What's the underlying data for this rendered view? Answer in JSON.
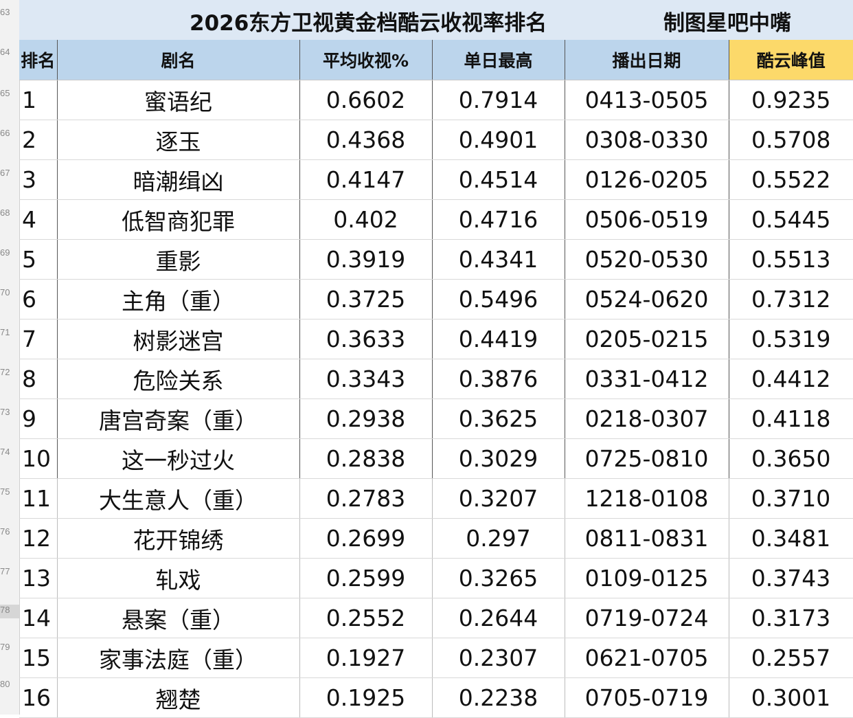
{
  "title": "2026东方卫视黄金档酷云收视率排名",
  "author": "制图星吧中嘴",
  "row_numbers": [
    "63",
    "64",
    "65",
    "66",
    "67",
    "68",
    "69",
    "70",
    "71",
    "72",
    "73",
    "74",
    "75",
    "76",
    "77",
    "78",
    "79",
    "80"
  ],
  "headers": [
    "排名",
    "剧名",
    "平均收视%",
    "单日最高",
    "播出日期",
    "酷云峰值"
  ],
  "rows": [
    {
      "rank": "1",
      "name": "蜜语纪",
      "avg": "0.6602",
      "max": "0.7914",
      "date": "0413-0505",
      "peak": "0.9235"
    },
    {
      "rank": "2",
      "name": "逐玉",
      "avg": "0.4368",
      "max": "0.4901",
      "date": "0308-0330",
      "peak": "0.5708"
    },
    {
      "rank": "3",
      "name": "暗潮缉凶",
      "avg": "0.4147",
      "max": "0.4514",
      "date": "0126-0205",
      "peak": "0.5522"
    },
    {
      "rank": "4",
      "name": "低智商犯罪",
      "avg": "0.402",
      "max": "0.4716",
      "date": "0506-0519",
      "peak": "0.5445"
    },
    {
      "rank": "5",
      "name": "重影",
      "avg": "0.3919",
      "max": "0.4341",
      "date": "0520-0530",
      "peak": "0.5513"
    },
    {
      "rank": "6",
      "name": "主角（重）",
      "avg": "0.3725",
      "max": "0.5496",
      "date": "0524-0620",
      "peak": "0.7312"
    },
    {
      "rank": "7",
      "name": "树影迷宫",
      "avg": "0.3633",
      "max": "0.4419",
      "date": "0205-0215",
      "peak": "0.5319"
    },
    {
      "rank": "8",
      "name": "危险关系",
      "avg": "0.3343",
      "max": "0.3876",
      "date": "0331-0412",
      "peak": "0.4412"
    },
    {
      "rank": "9",
      "name": "唐宫奇案（重）",
      "avg": "0.2938",
      "max": "0.3625",
      "date": "0218-0307",
      "peak": "0.4118"
    },
    {
      "rank": "10",
      "name": "这一秒过火",
      "avg": "0.2838",
      "max": "0.3029",
      "date": "0725-0810",
      "peak": "0.3650"
    },
    {
      "rank": "11",
      "name": "大生意人（重）",
      "avg": "0.2783",
      "max": "0.3207",
      "date": "1218-0108",
      "peak": "0.3710"
    },
    {
      "rank": "12",
      "name": "花开锦绣",
      "avg": "0.2699",
      "max": "0.297",
      "date": "0811-0831",
      "peak": "0.3481"
    },
    {
      "rank": "13",
      "name": "轧戏",
      "avg": "0.2599",
      "max": "0.3265",
      "date": "0109-0125",
      "peak": "0.3743"
    },
    {
      "rank": "14",
      "name": "悬案（重）",
      "avg": "0.2552",
      "max": "0.2644",
      "date": "0719-0724",
      "peak": "0.3173"
    },
    {
      "rank": "15",
      "name": "家事法庭（重）",
      "avg": "0.1927",
      "max": "0.2307",
      "date": "0621-0705",
      "peak": "0.2557"
    },
    {
      "rank": "16",
      "name": "翘楚",
      "avg": "0.1925",
      "max": "0.2238",
      "date": "0705-0719",
      "peak": "0.3001"
    }
  ],
  "colors": {
    "title_bg": "#dde8f4",
    "header_bg": "#bcd5ec",
    "peak_header_bg": "#fcd96a"
  }
}
